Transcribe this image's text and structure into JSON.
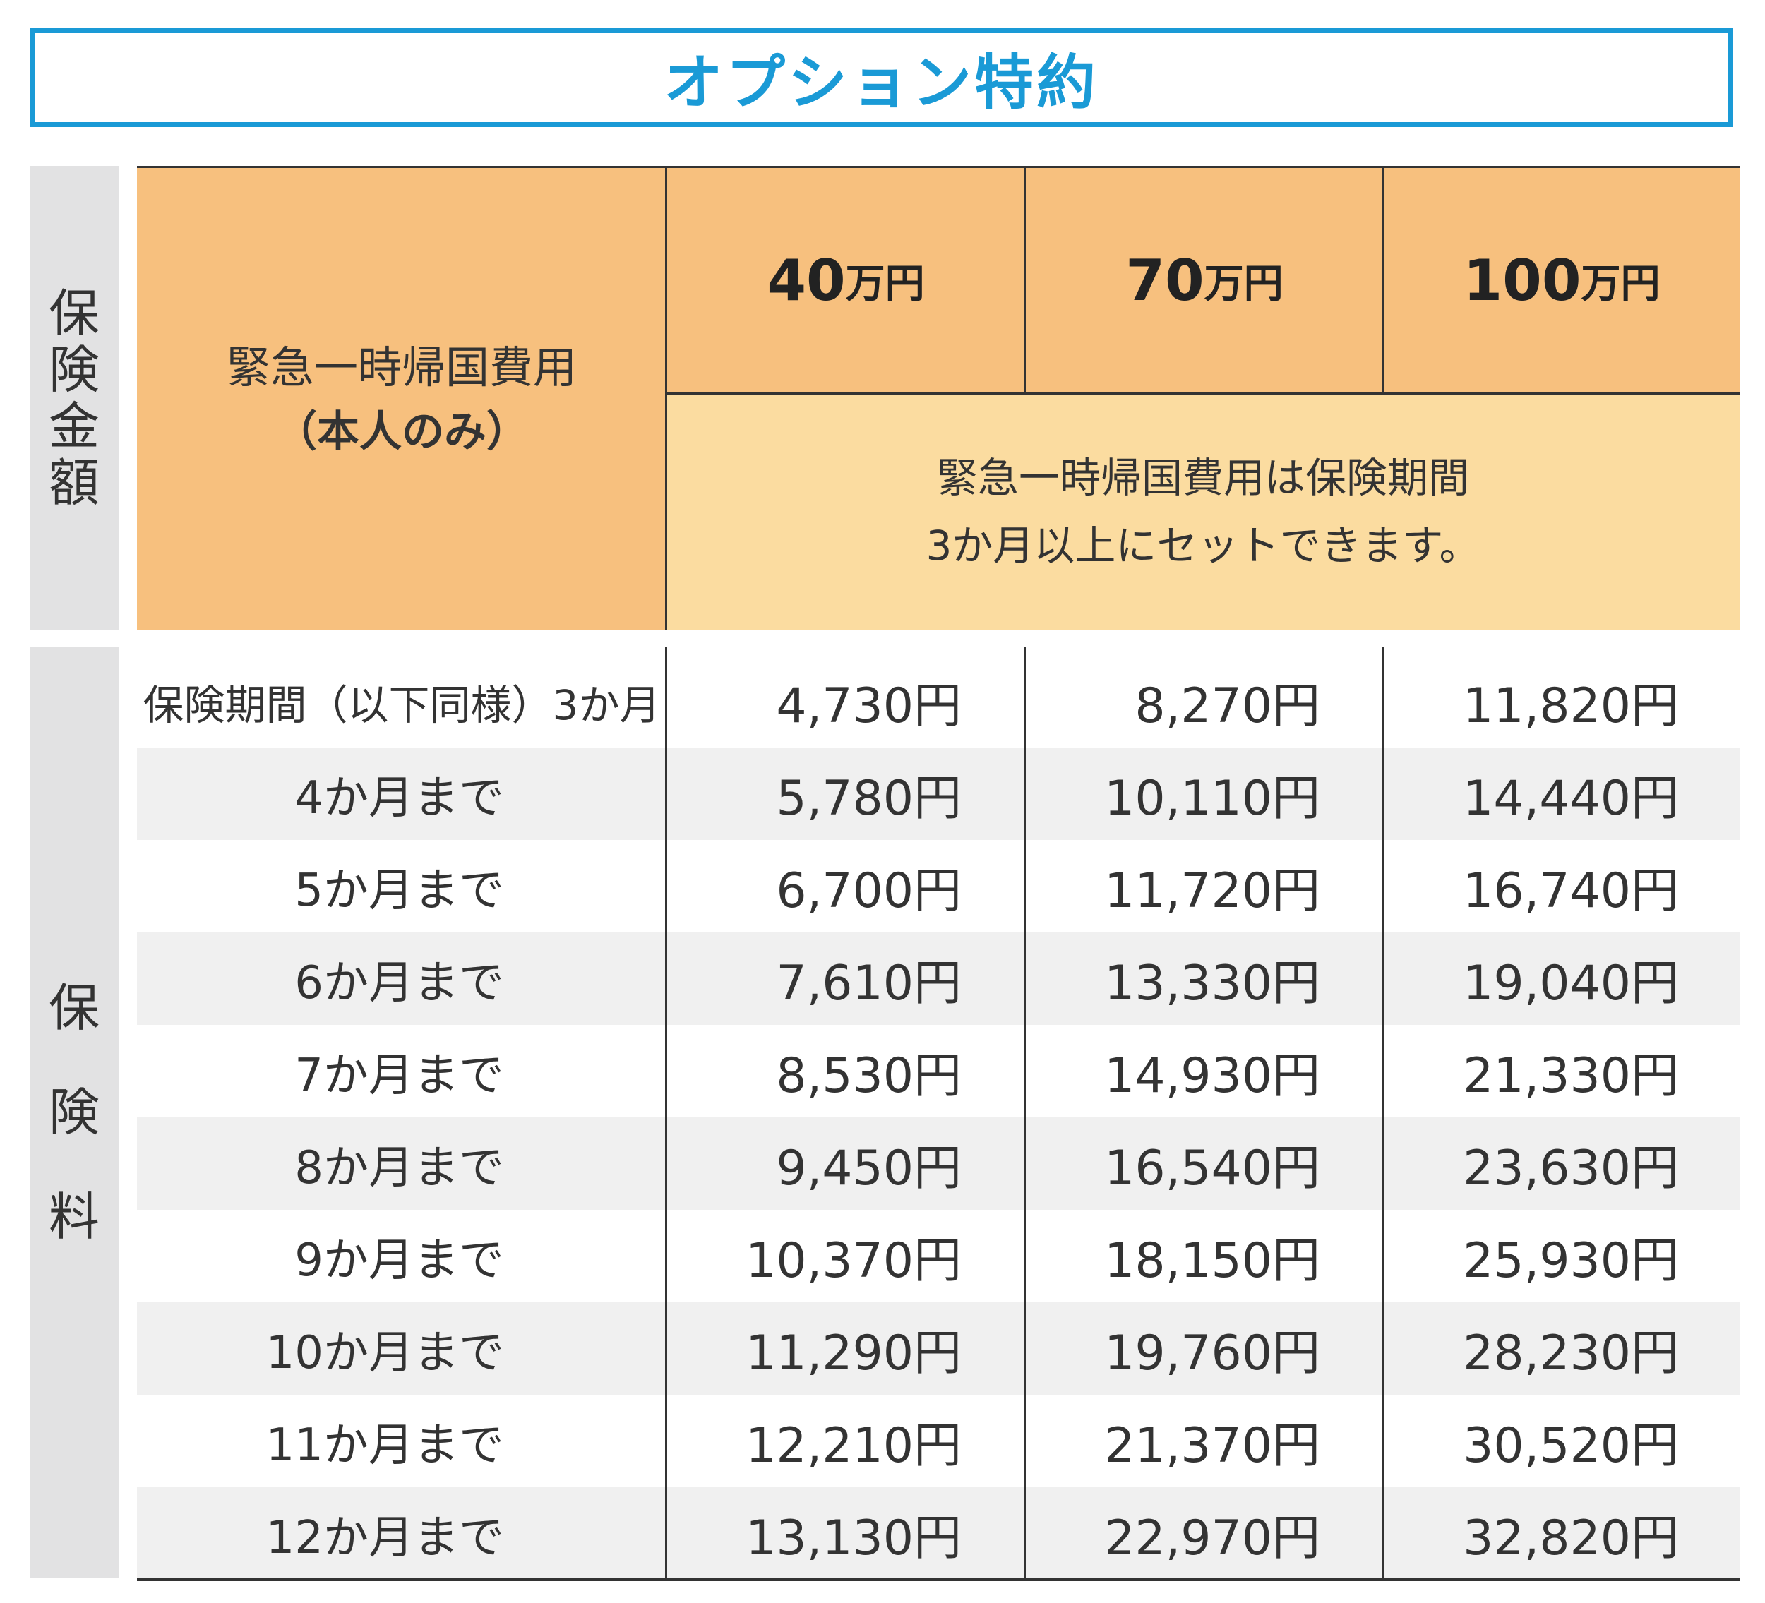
{
  "title": "オプション特約",
  "side_labels": {
    "amount": [
      "保",
      "険",
      "金",
      "額"
    ],
    "premium": [
      "保",
      "険",
      "料"
    ]
  },
  "header": {
    "label_line1": "緊急一時帰国費用",
    "label_line2": "（本人のみ）",
    "amounts": [
      {
        "num": "40",
        "unit": "万円"
      },
      {
        "num": "70",
        "unit": "万円"
      },
      {
        "num": "100",
        "unit": "万円"
      }
    ],
    "note_line1": "緊急一時帰国費用は保険期間",
    "note_line2": "3か月以上にセットできます。"
  },
  "rows": [
    {
      "label": "保険期間（以下同様）3か月",
      "values": [
        "4,730円",
        "8,270円",
        "11,820円"
      ]
    },
    {
      "label": "4か月まで",
      "values": [
        "5,780円",
        "10,110円",
        "14,440円"
      ]
    },
    {
      "label": "5か月まで",
      "values": [
        "6,700円",
        "11,720円",
        "16,740円"
      ]
    },
    {
      "label": "6か月まで",
      "values": [
        "7,610円",
        "13,330円",
        "19,040円"
      ]
    },
    {
      "label": "7か月まで",
      "values": [
        "8,530円",
        "14,930円",
        "21,330円"
      ]
    },
    {
      "label": "8か月まで",
      "values": [
        "9,450円",
        "16,540円",
        "23,630円"
      ]
    },
    {
      "label": "9か月まで",
      "values": [
        "10,370円",
        "18,150円",
        "25,930円"
      ]
    },
    {
      "label": "10か月まで",
      "values": [
        "11,290円",
        "19,760円",
        "28,230円"
      ]
    },
    {
      "label": "11か月まで",
      "values": [
        "12,210円",
        "21,370円",
        "30,520円"
      ]
    },
    {
      "label": "12か月まで",
      "values": [
        "13,130円",
        "22,970円",
        "32,820円"
      ]
    }
  ],
  "colors": {
    "accent": "#1a9ad6",
    "header_orange": "#f7c07e",
    "note_yellow": "#fbdca0",
    "side_gray": "#e2e2e3",
    "row_alt": "#f0f0f0"
  }
}
